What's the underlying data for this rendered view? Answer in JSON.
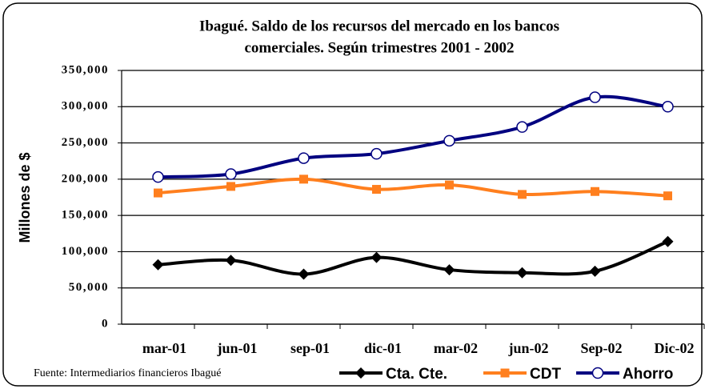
{
  "chart_data": {
    "type": "line",
    "title": [
      "Ibagué.  Saldo de los recursos del mercado en los bancos",
      "comerciales. Según trimestres 2001 - 2002"
    ],
    "ylabel": "Millones de $",
    "source": "Fuente: Intermediarios financieros Ibagué",
    "categories": [
      "mar-01",
      "jun-01",
      "sep-01",
      "dic-01",
      "mar-02",
      "jun-02",
      "Sep-02",
      "Dic-02"
    ],
    "series": [
      {
        "name": "Cta. Cte.",
        "color": "#000000",
        "marker": "diamond",
        "values": [
          82000,
          88000,
          69000,
          92000,
          75000,
          71000,
          73000,
          114000
        ]
      },
      {
        "name": "CDT",
        "color": "#ff7f1e",
        "marker": "square",
        "values": [
          181000,
          190000,
          200000,
          186000,
          192000,
          179000,
          183000,
          177000
        ]
      },
      {
        "name": "Ahorro",
        "color": "#000080",
        "marker": "circle",
        "values": [
          203000,
          207000,
          229000,
          235000,
          253000,
          272000,
          313000,
          300000
        ]
      }
    ],
    "ylim": [
      0,
      350000
    ],
    "yticks": [
      0,
      {
        "value": 50000,
        "label": "50,000"
      },
      {
        "value": 100000,
        "label": "100,000"
      },
      {
        "value": 150000,
        "label": "150,000"
      },
      {
        "value": 200000,
        "label": "200,000"
      },
      {
        "value": 250000,
        "label": "250,000"
      },
      {
        "value": 300000,
        "label": "300,000"
      },
      {
        "value": 350000,
        "label": "350,000"
      }
    ],
    "grid": true,
    "legend": "bottom",
    "smooth": true
  }
}
